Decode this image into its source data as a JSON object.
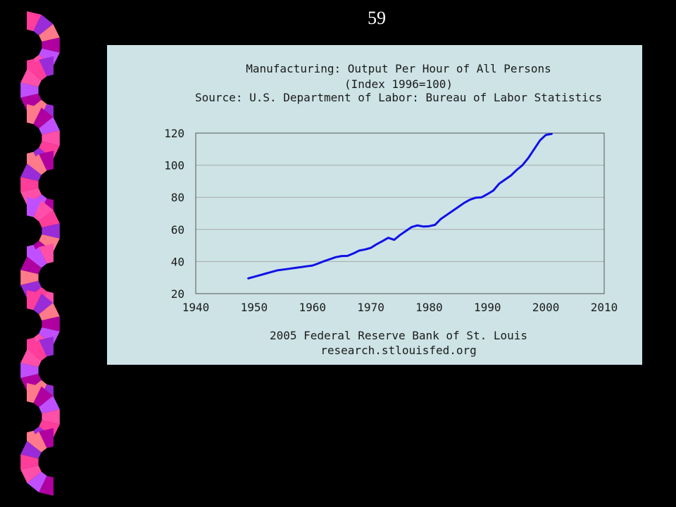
{
  "slide": {
    "number": "59"
  },
  "colors": {
    "background": "#000000",
    "panel": "#cde3e6",
    "line": "#1010e8",
    "grid": "#a8a8a8",
    "decor_palette": [
      "#ff3d9a",
      "#9a2bd8",
      "#ff7a8a",
      "#b000a0",
      "#c050ff",
      "#ff4fa8"
    ]
  },
  "chart_data": {
    "type": "line",
    "title_lines": [
      "Manufacturing: Output Per Hour of All Persons",
      "(Index 1996=100)",
      "Source: U.S. Department of Labor: Bureau of Labor Statistics"
    ],
    "footer_lines": [
      "2005 Federal Reserve Bank of St. Louis",
      "research.stlouisfed.org"
    ],
    "xlabel": "",
    "ylabel": "",
    "xlim": [
      1940,
      2010
    ],
    "ylim": [
      20,
      120
    ],
    "x_ticks": [
      1940,
      1950,
      1960,
      1970,
      1980,
      1990,
      2000,
      2010
    ],
    "y_ticks": [
      20,
      40,
      60,
      80,
      100,
      120
    ],
    "grid": true,
    "legend": "none",
    "series": [
      {
        "x": [
          1949,
          1950,
          1951,
          1952,
          1953,
          1954,
          1955,
          1956,
          1957,
          1958,
          1959,
          1960,
          1961,
          1962,
          1963,
          1964,
          1965,
          1966,
          1967,
          1968,
          1969,
          1970,
          1971,
          1972,
          1973,
          1974,
          1975,
          1976,
          1977,
          1978,
          1979,
          1980,
          1981,
          1982,
          1983,
          1984,
          1985,
          1986,
          1987,
          1988,
          1989,
          1990,
          1991,
          1992,
          1993,
          1994,
          1995,
          1996,
          1997,
          1998,
          1999,
          2000,
          2001
        ],
        "y": [
          29.5,
          30.5,
          31.5,
          32.5,
          33.5,
          34.5,
          35.0,
          35.5,
          36.0,
          36.5,
          37.0,
          37.5,
          38.8,
          40.2,
          41.5,
          42.7,
          43.4,
          43.5,
          45.0,
          46.8,
          47.5,
          48.5,
          50.8,
          52.7,
          54.8,
          53.5,
          56.5,
          59.0,
          61.5,
          62.5,
          61.8,
          62.0,
          62.8,
          66.5,
          69.0,
          71.5,
          74.0,
          76.5,
          78.5,
          79.8,
          80.0,
          82.0,
          84.2,
          88.5,
          91.0,
          93.5,
          97.0,
          100.0,
          104.5,
          110.0,
          115.5,
          118.8,
          119.5
        ]
      }
    ]
  }
}
